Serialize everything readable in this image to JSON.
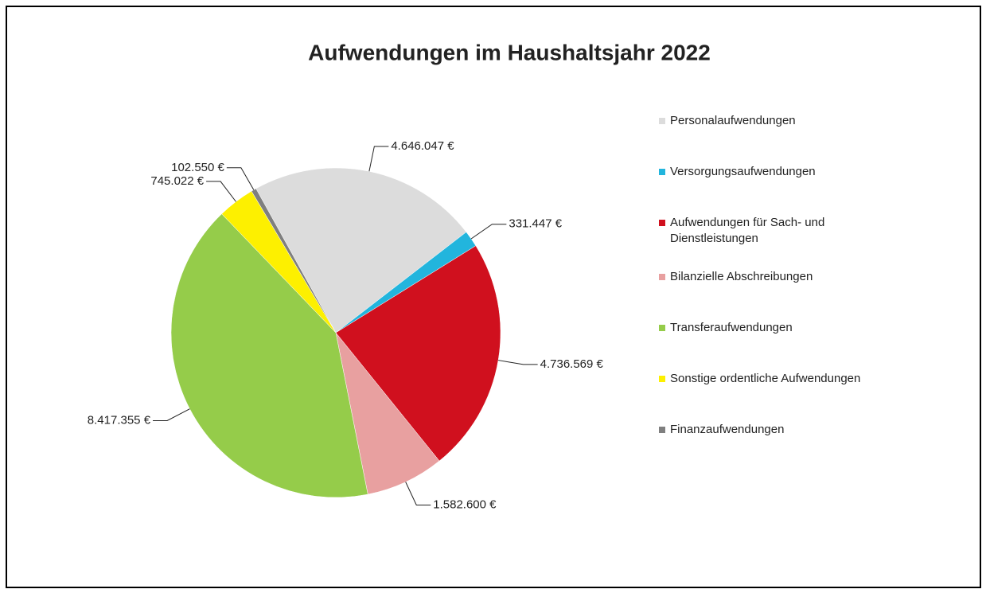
{
  "chart_data": {
    "type": "pie",
    "title": "Aufwendungen im Haushaltsjahr 2022",
    "categories": [
      "Personalaufwendungen",
      "Versorgungsaufwendungen",
      "Aufwendungen für Sach- und Dienstleistungen",
      "Bilanzielle Abschreibungen",
      "Transferaufwendungen",
      "Sonstige ordentliche Aufwendungen",
      "Finanzaufwendungen"
    ],
    "values": [
      4646047,
      331447,
      4736569,
      1582600,
      8417355,
      745022,
      102550
    ],
    "value_labels": [
      "4.646.047 €",
      "331.447 €",
      "4.736.569 €",
      "1.582.600 €",
      "8.417.355 €",
      "745.022 €",
      "102.550 €"
    ],
    "colors": [
      "#dcdcdc",
      "#22b5dd",
      "#d0101e",
      "#e8a0a0",
      "#95cc4a",
      "#fdf000",
      "#7f7f7f"
    ],
    "legend": "right"
  }
}
